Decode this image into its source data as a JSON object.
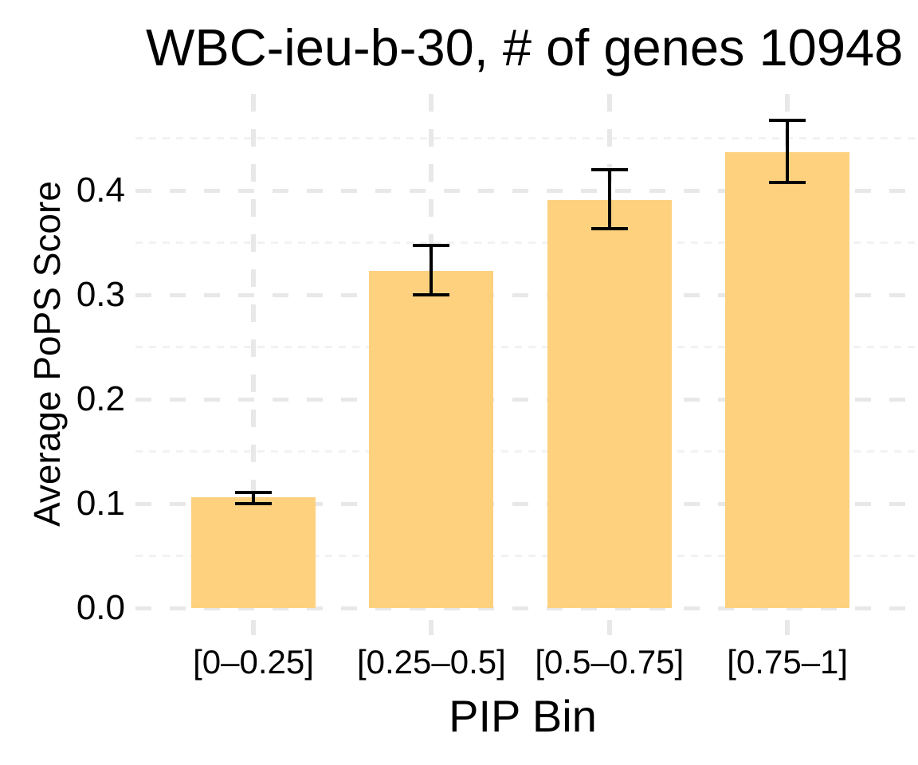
{
  "chart_data": {
    "type": "bar",
    "title": "WBC-ieu-b-30, # of genes 10948",
    "xlabel": "PIP Bin",
    "ylabel": "Average PoPS Score",
    "categories": [
      "[0–0.25]",
      "[0.25–0.5]",
      "[0.5–0.75]",
      "[0.75–1]"
    ],
    "values": [
      0.106,
      0.323,
      0.391,
      0.437
    ],
    "error_low": [
      0.1,
      0.3,
      0.363,
      0.408
    ],
    "error_high": [
      0.111,
      0.347,
      0.42,
      0.467
    ],
    "yticks": [
      0,
      0.1,
      0.2,
      0.3,
      0.4
    ],
    "ytick_labels": [
      "0.0",
      "0.1",
      "0.2",
      "0.3",
      "0.4"
    ],
    "minor_yticks": [
      0.05,
      0.15,
      0.25,
      0.35,
      0.45
    ],
    "ylim": [
      -0.028,
      0.487
    ],
    "grid": "dashed-major-minor",
    "legend": "none",
    "colors": {
      "bar_fill": "#FDD17E",
      "error_bar": "#000000",
      "grid_major": "#E8E8E8",
      "grid_minor": "#F2F2F2",
      "text": "#000000",
      "background": "#FFFFFF"
    }
  }
}
